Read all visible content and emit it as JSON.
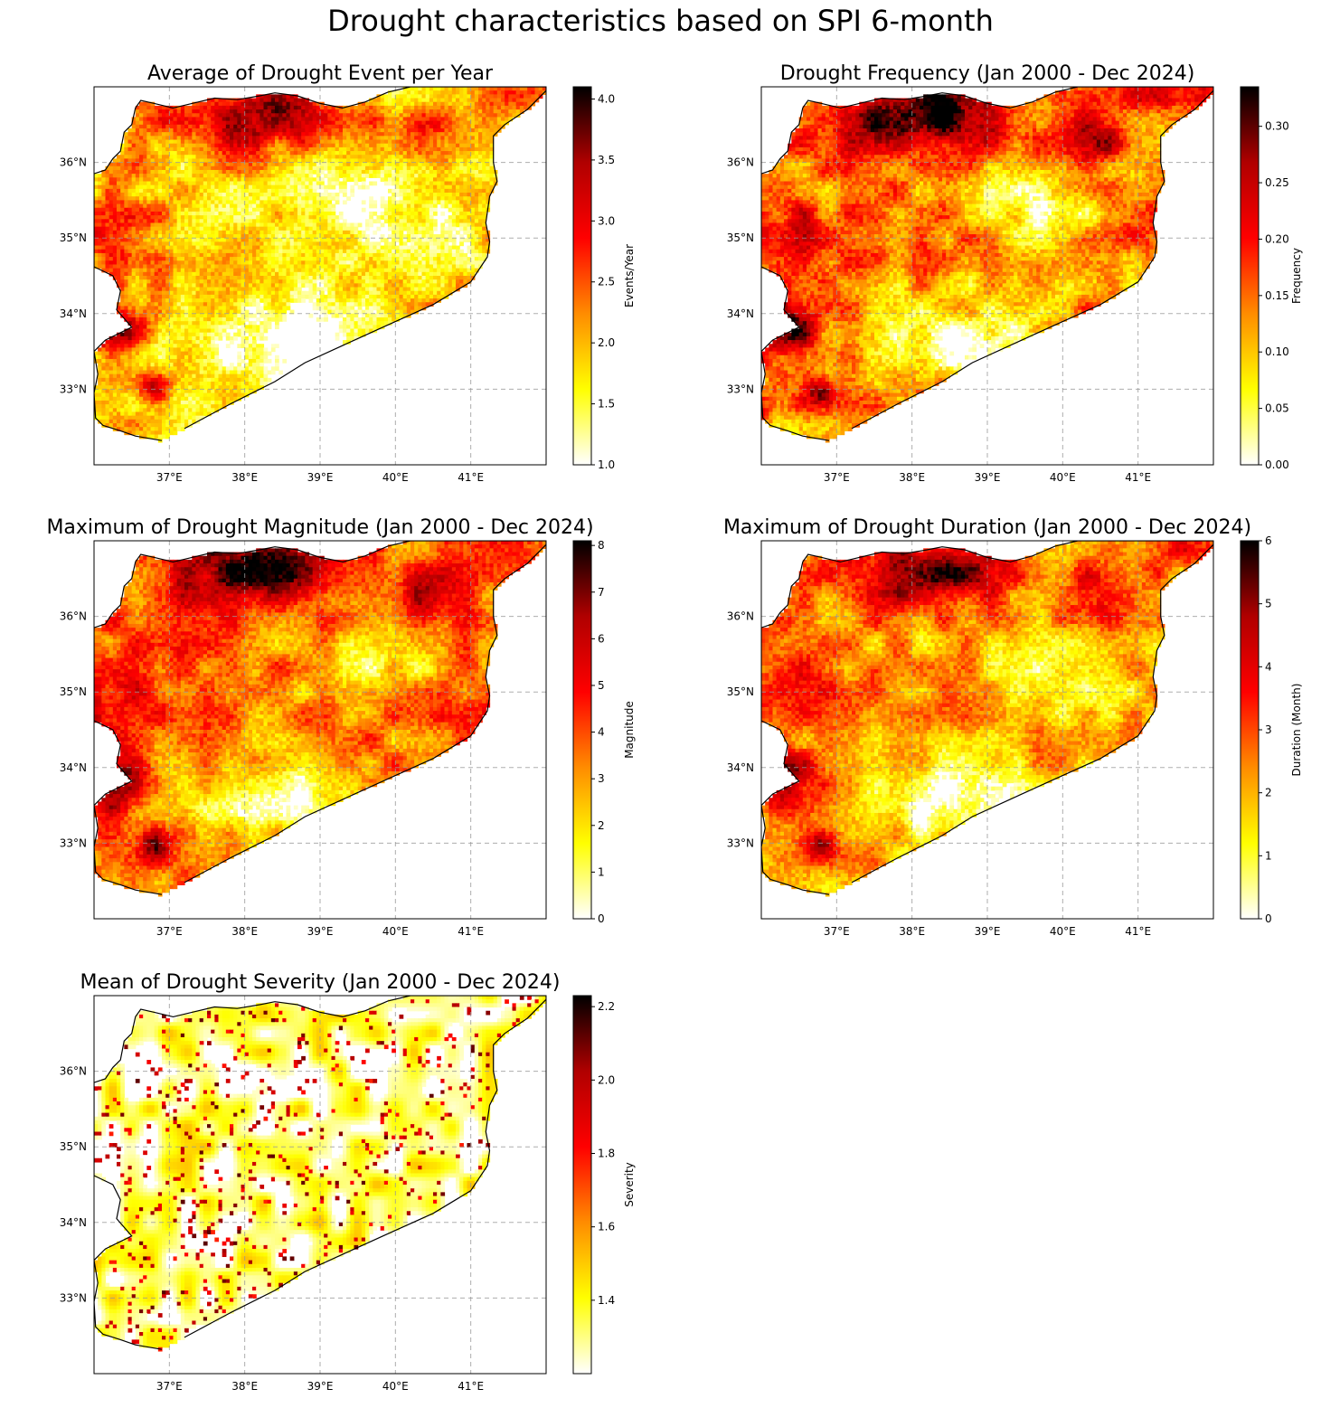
{
  "figure": {
    "title": "Drought characteristics based on SPI 6-month"
  },
  "colormap": {
    "name": "hot_r",
    "stops": [
      "#ffffff",
      "#ffff00",
      "#ff8c00",
      "#ff0000",
      "#b00000",
      "#000000"
    ]
  },
  "map_axes": {
    "xticks": [
      "37°E",
      "38°E",
      "39°E",
      "40°E",
      "41°E"
    ],
    "yticks": [
      "36°N",
      "35°N",
      "34°N",
      "33°N"
    ],
    "gridlines": true,
    "extent_lon": [
      36.0,
      42.0
    ],
    "extent_lat": [
      32.0,
      37.0
    ]
  },
  "panels": [
    {
      "title": "Average of Drought Event per Year",
      "colorbar_label": "Events/Year",
      "colorbar_ticks": [
        "1.0",
        "1.5",
        "2.0",
        "2.5",
        "3.0",
        "3.5",
        "4.0"
      ],
      "colorbar_tick_values": [
        1.0,
        1.5,
        2.0,
        2.5,
        3.0,
        3.5,
        4.0
      ],
      "colorbar_range": [
        1.0,
        4.1
      ]
    },
    {
      "title": "Drought Frequency (Jan 2000 - Dec 2024)",
      "colorbar_label": "Frequency",
      "colorbar_ticks": [
        "0.00",
        "0.05",
        "0.10",
        "0.15",
        "0.20",
        "0.25",
        "0.30"
      ],
      "colorbar_tick_values": [
        0.0,
        0.05,
        0.1,
        0.15,
        0.2,
        0.25,
        0.3
      ],
      "colorbar_range": [
        0.0,
        0.335
      ]
    },
    {
      "title": "Maximum of Drought Magnitude (Jan 2000 - Dec 2024)",
      "colorbar_label": "Magnitude",
      "colorbar_ticks": [
        "0",
        "1",
        "2",
        "3",
        "4",
        "5",
        "6",
        "7",
        "8"
      ],
      "colorbar_tick_values": [
        0,
        1,
        2,
        3,
        4,
        5,
        6,
        7,
        8
      ],
      "colorbar_range": [
        0,
        8.1
      ]
    },
    {
      "title": "Maximum of Drought Duration (Jan 2000 - Dec 2024)",
      "colorbar_label": "Duration (Month)",
      "colorbar_ticks": [
        "0",
        "1",
        "2",
        "3",
        "4",
        "5",
        "6"
      ],
      "colorbar_tick_values": [
        0,
        1,
        2,
        3,
        4,
        5,
        6
      ],
      "colorbar_range": [
        0,
        6
      ]
    },
    {
      "title": "Mean of Drought Severity (Jan 2000 - Dec 2024)",
      "colorbar_label": "Severity",
      "colorbar_ticks": [
        "1.4",
        "1.6",
        "1.8",
        "2.0",
        "2.2"
      ],
      "colorbar_tick_values": [
        1.4,
        1.6,
        1.8,
        2.0,
        2.2
      ],
      "colorbar_range": [
        1.2,
        2.23
      ]
    }
  ]
}
